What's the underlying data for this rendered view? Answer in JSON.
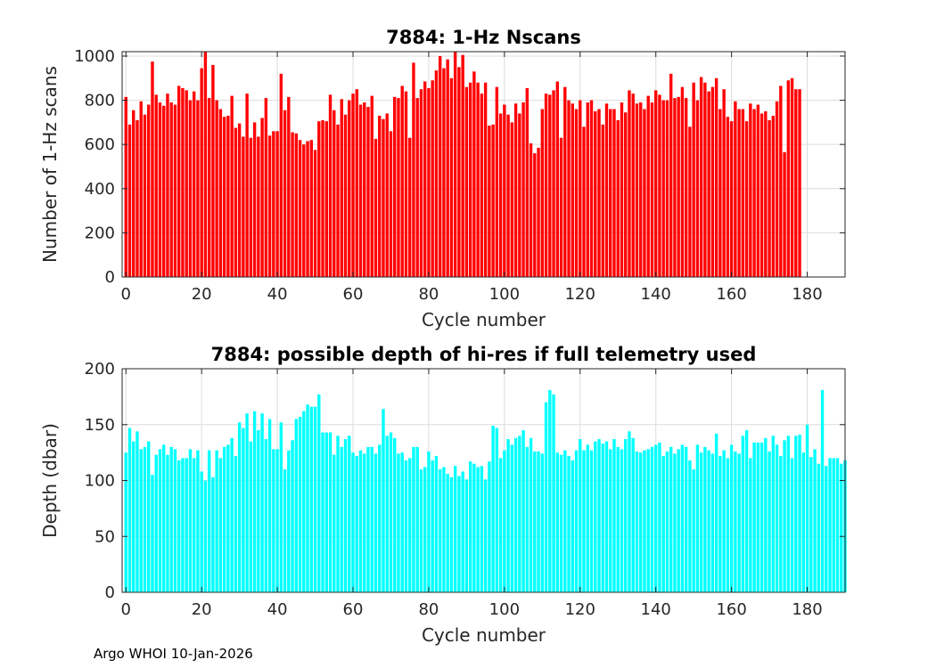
{
  "footer": "Argo WHOI 10-Jan-2026",
  "chart_data": [
    {
      "type": "bar",
      "title": "7884: 1-Hz Nscans",
      "xlabel": "Cycle number",
      "ylabel": "Number of 1-Hz scans",
      "color": "#ff0000",
      "xlim": [
        -1,
        190
      ],
      "ylim": [
        0,
        1020
      ],
      "xticks": [
        0,
        20,
        40,
        60,
        80,
        100,
        120,
        140,
        160,
        180
      ],
      "yticks": [
        0,
        200,
        400,
        600,
        800,
        1000
      ],
      "x_start": 0,
      "values": [
        815,
        690,
        755,
        710,
        795,
        735,
        780,
        975,
        825,
        790,
        775,
        830,
        790,
        780,
        865,
        855,
        845,
        800,
        840,
        800,
        945,
        1040,
        810,
        960,
        800,
        760,
        725,
        730,
        820,
        675,
        695,
        635,
        830,
        630,
        700,
        635,
        720,
        810,
        640,
        660,
        660,
        920,
        755,
        815,
        655,
        650,
        620,
        600,
        615,
        620,
        575,
        705,
        710,
        705,
        825,
        755,
        690,
        805,
        735,
        800,
        830,
        850,
        780,
        790,
        770,
        820,
        625,
        730,
        715,
        740,
        660,
        815,
        810,
        865,
        840,
        630,
        970,
        810,
        850,
        885,
        855,
        890,
        935,
        1000,
        945,
        985,
        900,
        1035,
        950,
        1005,
        860,
        880,
        930,
        880,
        830,
        880,
        685,
        690,
        860,
        740,
        780,
        735,
        700,
        785,
        740,
        790,
        855,
        605,
        560,
        585,
        760,
        830,
        825,
        845,
        885,
        630,
        860,
        800,
        785,
        760,
        800,
        680,
        790,
        800,
        750,
        760,
        690,
        785,
        760,
        760,
        710,
        790,
        745,
        845,
        830,
        785,
        790,
        760,
        820,
        790,
        845,
        825,
        800,
        800,
        920,
        810,
        815,
        860,
        810,
        680,
        880,
        800,
        905,
        880,
        840,
        860,
        900,
        760,
        850,
        725,
        705,
        795,
        760,
        760,
        705,
        785,
        760,
        780,
        740,
        750,
        710,
        730,
        795,
        865,
        565,
        890,
        900,
        850,
        850
      ]
    },
    {
      "type": "bar",
      "title": "7884: possible depth of hi-res if full telemetry used",
      "xlabel": "Cycle number",
      "ylabel": "Depth (dbar)",
      "color": "#00ffff",
      "xlim": [
        -1,
        190
      ],
      "ylim": [
        0,
        200
      ],
      "xticks": [
        0,
        20,
        40,
        60,
        80,
        100,
        120,
        140,
        160,
        180
      ],
      "yticks": [
        0,
        50,
        100,
        150,
        200
      ],
      "x_start": 0,
      "values": [
        125,
        147,
        135,
        144,
        128,
        130,
        135,
        105,
        123,
        128,
        132,
        123,
        130,
        128,
        118,
        120,
        120,
        128,
        120,
        127,
        108,
        100,
        127,
        103,
        127,
        120,
        130,
        132,
        138,
        122,
        152,
        147,
        160,
        135,
        162,
        145,
        160,
        137,
        155,
        128,
        128,
        152,
        110,
        127,
        136,
        155,
        157,
        162,
        168,
        166,
        166,
        177,
        143,
        143,
        143,
        123,
        140,
        130,
        137,
        140,
        125,
        122,
        127,
        124,
        130,
        130,
        124,
        132,
        164,
        140,
        143,
        138,
        124,
        125,
        118,
        120,
        130,
        130,
        110,
        112,
        126,
        118,
        122,
        110,
        112,
        106,
        103,
        113,
        104,
        108,
        101,
        117,
        115,
        112,
        113,
        101,
        117,
        149,
        147,
        120,
        127,
        137,
        132,
        138,
        140,
        145,
        130,
        138,
        126,
        126,
        124,
        170,
        181,
        177,
        125,
        123,
        127,
        122,
        118,
        127,
        137,
        127,
        132,
        127,
        135,
        137,
        133,
        135,
        128,
        137,
        130,
        128,
        137,
        144,
        138,
        126,
        125,
        127,
        128,
        130,
        132,
        134,
        122,
        126,
        130,
        124,
        128,
        132,
        130,
        118,
        110,
        132,
        125,
        130,
        127,
        124,
        142,
        122,
        127,
        120,
        132,
        126,
        124,
        140,
        145,
        120,
        134,
        134,
        134,
        138,
        126,
        140,
        132,
        122,
        136,
        140,
        120,
        140,
        141,
        125,
        150,
        121,
        128,
        115,
        181,
        113,
        120,
        120,
        120,
        115,
        118
      ]
    }
  ]
}
